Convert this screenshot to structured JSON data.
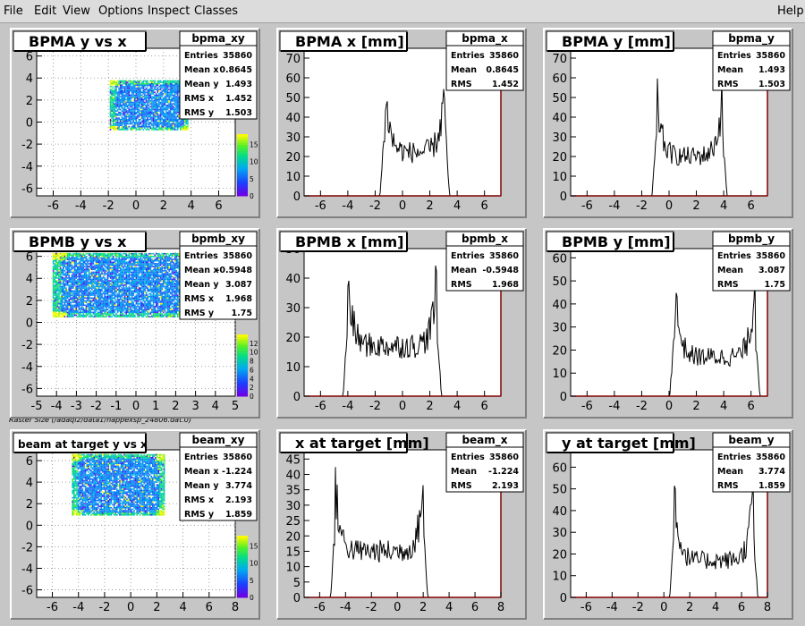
{
  "menu": [
    "File",
    "Edit",
    "View",
    "Options",
    "Inspect",
    "Classes"
  ],
  "help_label": "Help",
  "caption": "Raster Size (/adaql2/data1/happexsp_24806.dat.0)",
  "colors": {
    "background": "#c6c6c6",
    "frame": "#ffffff",
    "axis": "#800000",
    "hist": "#000000"
  },
  "stat_labels": {
    "entries": "Entries",
    "mean": "Mean",
    "meanx": "Mean x",
    "meany": "Mean y",
    "rms": "RMS",
    "rmsx": "RMS x",
    "rmsy": "RMS y"
  },
  "pads": [
    {
      "id": "bpma-xy",
      "kind": "2d",
      "title": "BPMA y vs x",
      "stat_name": "bpma_xy",
      "stats": {
        "entries": "35860",
        "meanx": "0.8645",
        "meany": "1.493",
        "rmsx": "1.452",
        "rmsy": "1.503"
      },
      "x_ticks": [
        "-6",
        "-4",
        "-2",
        "0",
        "2",
        "4",
        "6"
      ],
      "y_ticks": [
        "-6",
        "-4",
        "-2",
        "0",
        "2",
        "4",
        "6"
      ],
      "xlim": [
        -7.2,
        7.2
      ],
      "ylim": [
        -6.7,
        6.7
      ],
      "box": [
        -1.9,
        3.8,
        -0.7,
        3.8
      ],
      "z_ticks": [
        "0",
        "5",
        "10",
        "15"
      ],
      "z_max": 18
    },
    {
      "id": "bpma-x",
      "kind": "1d",
      "title": "BPMA x [mm]",
      "stat_name": "bpma_x",
      "stats": {
        "entries": "35860",
        "mean": "0.8645",
        "rms": "1.452"
      },
      "x_ticks": [
        "-6",
        "-4",
        "-2",
        "0",
        "2",
        "4",
        "6"
      ],
      "y_ticks": [
        "0",
        "10",
        "20",
        "30",
        "40",
        "50",
        "60",
        "70"
      ],
      "xlim": [
        -7.2,
        7.2
      ],
      "ylim": [
        0,
        75
      ],
      "lo": -1.3,
      "hi": 3.1,
      "edge_peak": 57,
      "center": 22
    },
    {
      "id": "bpma-y",
      "kind": "1d",
      "title": "BPMA y [mm]",
      "stat_name": "bpma_y",
      "stats": {
        "entries": "35860",
        "mean": "1.493",
        "rms": "1.503"
      },
      "x_ticks": [
        "-6",
        "-4",
        "-2",
        "0",
        "2",
        "4",
        "6"
      ],
      "y_ticks": [
        "0",
        "10",
        "20",
        "30",
        "40",
        "50",
        "60",
        "70"
      ],
      "xlim": [
        -7.2,
        7.2
      ],
      "ylim": [
        0,
        75
      ],
      "lo": -0.9,
      "hi": 3.9,
      "edge_peak": 52,
      "center": 20
    },
    {
      "id": "bpmb-xy",
      "kind": "2d",
      "title": "BPMB y vs x",
      "stat_name": "bpmb_xy",
      "stats": {
        "entries": "35860",
        "meanx": "-0.5948",
        "meany": "3.087",
        "rmsx": "1.968",
        "rmsy": "1.75"
      },
      "x_ticks": [
        "-5",
        "-4",
        "-3",
        "-2",
        "-1",
        "0",
        "1",
        "2",
        "3",
        "4",
        "5"
      ],
      "y_ticks": [
        "-6",
        "-4",
        "-2",
        "0",
        "2",
        "4",
        "6"
      ],
      "xlim": [
        -5,
        5
      ],
      "ylim": [
        -6.7,
        6.7
      ],
      "box": [
        -4.2,
        2.8,
        0.5,
        6.3
      ],
      "z_ticks": [
        "0",
        "2",
        "4",
        "6",
        "8",
        "10",
        "12"
      ],
      "z_max": 14
    },
    {
      "id": "bpmb-x",
      "kind": "1d",
      "title": "BPMB x [mm]",
      "stat_name": "bpmb_x",
      "stats": {
        "entries": "35860",
        "mean": "-0.5948",
        "rms": "1.968"
      },
      "x_ticks": [
        "-6",
        "-4",
        "-2",
        "0",
        "2",
        "4",
        "6"
      ],
      "y_ticks": [
        "0",
        "10",
        "20",
        "30",
        "40",
        "50"
      ],
      "xlim": [
        -7.2,
        7.2
      ],
      "ylim": [
        0,
        50
      ],
      "lo": -4.0,
      "hi": 2.5,
      "edge_peak": 40,
      "center": 17
    },
    {
      "id": "bpmb-y",
      "kind": "1d",
      "title": "BPMB y [mm]",
      "stat_name": "bpmb_y",
      "stats": {
        "entries": "35860",
        "mean": "3.087",
        "rms": "1.75"
      },
      "x_ticks": [
        "-6",
        "-4",
        "-2",
        "0",
        "2",
        "4",
        "6"
      ],
      "y_ticks": [
        "0",
        "10",
        "20",
        "30",
        "40",
        "50",
        "60"
      ],
      "xlim": [
        -7.2,
        7.2
      ],
      "ylim": [
        0,
        64
      ],
      "lo": 0.4,
      "hi": 6.3,
      "edge_peak": 50,
      "center": 17
    },
    {
      "id": "beam-xy",
      "kind": "2d",
      "title": "beam at target y vs x",
      "stat_name": "beam_xy",
      "stats": {
        "entries": "35860",
        "meanx": "-1.224",
        "meany": "3.774",
        "rmsx": "2.193",
        "rmsy": "1.859"
      },
      "x_ticks": [
        "-6",
        "-4",
        "-2",
        "0",
        "2",
        "4",
        "6",
        "8"
      ],
      "y_ticks": [
        "-6",
        "-4",
        "-2",
        "0",
        "2",
        "4",
        "6"
      ],
      "xlim": [
        -7.2,
        8
      ],
      "ylim": [
        -6.7,
        7
      ],
      "box": [
        -4.5,
        2.6,
        0.9,
        6.6
      ],
      "z_ticks": [
        "0",
        "5",
        "10",
        "15"
      ],
      "z_max": 18
    },
    {
      "id": "beam-x",
      "kind": "1d",
      "title": "x at target [mm]",
      "stat_name": "beam_x",
      "stats": {
        "entries": "35860",
        "mean": "-1.224",
        "rms": "2.193"
      },
      "x_ticks": [
        "-6",
        "-4",
        "-2",
        "0",
        "2",
        "4",
        "6",
        "8"
      ],
      "y_ticks": [
        "0",
        "5",
        "10",
        "15",
        "20",
        "25",
        "30",
        "35",
        "40",
        "45"
      ],
      "xlim": [
        -7.2,
        8
      ],
      "ylim": [
        0,
        48
      ],
      "lo": -4.8,
      "hi": 2.0,
      "edge_peak": 38,
      "center": 15
    },
    {
      "id": "beam-y",
      "kind": "1d",
      "title": "y at target [mm]",
      "stat_name": "beam_y",
      "stats": {
        "entries": "35860",
        "mean": "3.774",
        "rms": "1.859"
      },
      "x_ticks": [
        "-6",
        "-4",
        "-2",
        "0",
        "2",
        "4",
        "6",
        "8"
      ],
      "y_ticks": [
        "0",
        "10",
        "20",
        "30",
        "40",
        "50",
        "60"
      ],
      "xlim": [
        -7.2,
        8
      ],
      "ylim": [
        0,
        68
      ],
      "lo": 0.8,
      "hi": 6.9,
      "edge_peak": 52,
      "center": 17
    }
  ]
}
